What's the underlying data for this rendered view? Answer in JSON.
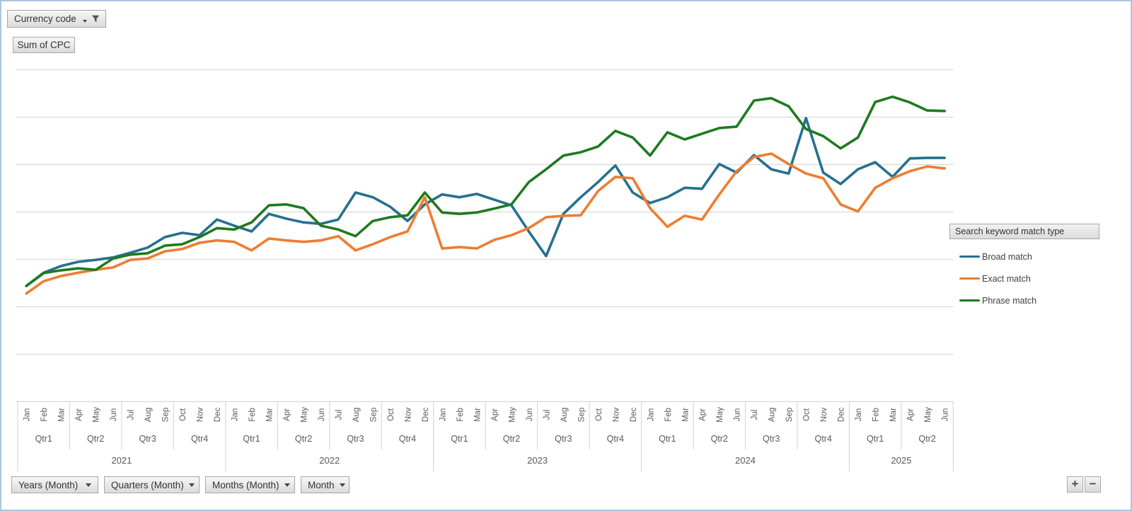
{
  "filter_button": {
    "label": "Currency code"
  },
  "values_button": {
    "label": "Sum of CPC"
  },
  "legend": {
    "field_label": "Search keyword match type",
    "items": [
      {
        "label": "Broad match",
        "color": "#26708E"
      },
      {
        "label": "Exact match",
        "color": "#ED7D31"
      },
      {
        "label": "Phrase match",
        "color": "#1E7A1E"
      }
    ]
  },
  "axis_field_buttons": [
    {
      "label": "Years (Month)"
    },
    {
      "label": "Quarters (Month)"
    },
    {
      "label": "Months (Month)"
    },
    {
      "label": "Month"
    }
  ],
  "drill_buttons": {
    "expand": "+",
    "collapse": "−"
  },
  "colors": {
    "gridline": "#D9D9D9",
    "axis_text": "#595959",
    "page_border": "#A9C6E0"
  },
  "chart_data": {
    "type": "line",
    "title": "",
    "xlabel": "",
    "ylabel": "",
    "ylim": [
      0,
      7
    ],
    "y_gridline_count": 8,
    "value_axis_labels_visible": false,
    "grid": true,
    "legend_position": "right",
    "categories_months": [
      "Jan",
      "Feb",
      "Mar",
      "Apr",
      "May",
      "Jun",
      "Jul",
      "Aug",
      "Sep",
      "Oct",
      "Nov",
      "Dec",
      "Jan",
      "Feb",
      "Mar",
      "Apr",
      "May",
      "Jun",
      "Jul",
      "Aug",
      "Sep",
      "Oct",
      "Nov",
      "Dec",
      "Jan",
      "Feb",
      "Mar",
      "Apr",
      "May",
      "Jun",
      "Jul",
      "Aug",
      "Sep",
      "Oct",
      "Nov",
      "Dec",
      "Jan",
      "Feb",
      "Mar",
      "Apr",
      "May",
      "Jun",
      "Jul",
      "Aug",
      "Sep",
      "Oct",
      "Nov",
      "Dec",
      "Jan",
      "Feb",
      "Mar",
      "Apr",
      "May",
      "Jun"
    ],
    "quarters": [
      "Qtr1",
      "Qtr2",
      "Qtr3",
      "Qtr4",
      "Qtr1",
      "Qtr2",
      "Qtr3",
      "Qtr4",
      "Qtr1",
      "Qtr2",
      "Qtr3",
      "Qtr4",
      "Qtr1",
      "Qtr2",
      "Qtr3",
      "Qtr4",
      "Qtr1",
      "Qtr2"
    ],
    "years": [
      {
        "label": "2021",
        "quarters": 4
      },
      {
        "label": "2022",
        "quarters": 4
      },
      {
        "label": "2023",
        "quarters": 4
      },
      {
        "label": "2024",
        "quarters": 4
      },
      {
        "label": "2025",
        "quarters": 2
      }
    ],
    "series": [
      {
        "name": "Broad match",
        "color": "#26708E",
        "values": [
          2.44,
          2.72,
          2.86,
          2.95,
          2.99,
          3.04,
          3.14,
          3.25,
          3.47,
          3.56,
          3.51,
          3.84,
          3.71,
          3.59,
          3.96,
          3.86,
          3.78,
          3.75,
          3.84,
          4.41,
          4.31,
          4.11,
          3.81,
          4.16,
          4.37,
          4.31,
          4.38,
          4.26,
          4.14,
          3.59,
          3.07,
          3.96,
          4.31,
          4.63,
          4.98,
          4.41,
          4.19,
          4.31,
          4.51,
          4.49,
          5.01,
          4.83,
          5.2,
          4.9,
          4.81,
          5.98,
          4.83,
          4.59,
          4.9,
          5.05,
          4.74,
          5.13,
          5.14,
          5.14
        ]
      },
      {
        "name": "Exact match",
        "color": "#ED7D31",
        "values": [
          2.28,
          2.54,
          2.65,
          2.72,
          2.78,
          2.83,
          2.99,
          3.02,
          3.17,
          3.22,
          3.35,
          3.4,
          3.37,
          3.19,
          3.44,
          3.4,
          3.37,
          3.4,
          3.49,
          3.19,
          3.32,
          3.47,
          3.59,
          4.31,
          3.23,
          3.26,
          3.23,
          3.41,
          3.51,
          3.66,
          3.89,
          3.92,
          3.93,
          4.44,
          4.74,
          4.71,
          4.08,
          3.69,
          3.92,
          3.84,
          4.37,
          4.86,
          5.16,
          5.23,
          5.01,
          4.81,
          4.71,
          4.16,
          4.01,
          4.51,
          4.71,
          4.86,
          4.96,
          4.92
        ]
      },
      {
        "name": "Phrase match",
        "color": "#1E7A1E",
        "values": [
          2.44,
          2.71,
          2.77,
          2.81,
          2.78,
          3.02,
          3.1,
          3.13,
          3.29,
          3.32,
          3.47,
          3.66,
          3.63,
          3.78,
          4.14,
          4.16,
          4.08,
          3.71,
          3.63,
          3.49,
          3.81,
          3.89,
          3.93,
          4.41,
          3.99,
          3.96,
          3.99,
          4.07,
          4.16,
          4.63,
          4.9,
          5.19,
          5.26,
          5.38,
          5.71,
          5.57,
          5.19,
          5.68,
          5.53,
          5.65,
          5.77,
          5.8,
          6.35,
          6.4,
          6.23,
          5.75,
          5.6,
          5.34,
          5.57,
          6.32,
          6.43,
          6.31,
          6.14,
          6.13
        ]
      }
    ]
  }
}
